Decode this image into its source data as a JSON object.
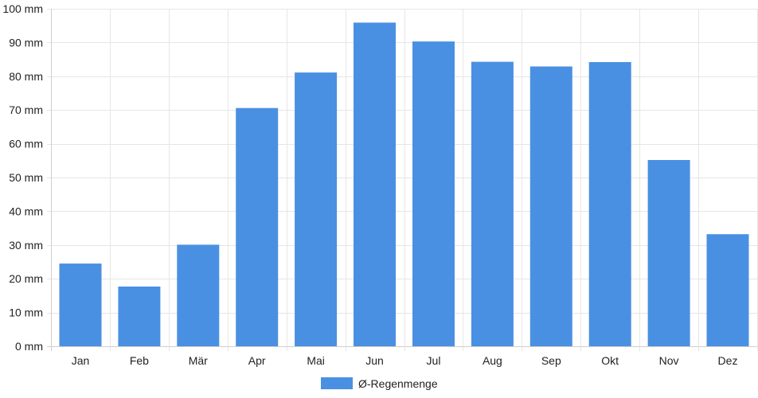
{
  "chart_data": {
    "type": "bar",
    "categories": [
      "Jan",
      "Feb",
      "Mär",
      "Apr",
      "Mai",
      "Jun",
      "Jul",
      "Aug",
      "Sep",
      "Okt",
      "Nov",
      "Dez"
    ],
    "series": [
      {
        "name": "Ø-Regenmenge",
        "values": [
          24.5,
          17.7,
          30.1,
          70.6,
          81.1,
          95.9,
          90.3,
          84.3,
          82.9,
          84.2,
          55.2,
          33.2
        ],
        "color": "#4a90e2"
      }
    ],
    "y_unit": "mm",
    "ylim": [
      0,
      100
    ],
    "y_ticks": [
      0,
      10,
      20,
      30,
      40,
      50,
      60,
      70,
      80,
      90,
      100
    ],
    "y_tick_labels": [
      "0 mm",
      "10 mm",
      "20 mm",
      "30 mm",
      "40 mm",
      "50 mm",
      "60 mm",
      "70 mm",
      "80 mm",
      "90 mm",
      "100 mm"
    ],
    "grid": true,
    "legend_position": "bottom"
  }
}
